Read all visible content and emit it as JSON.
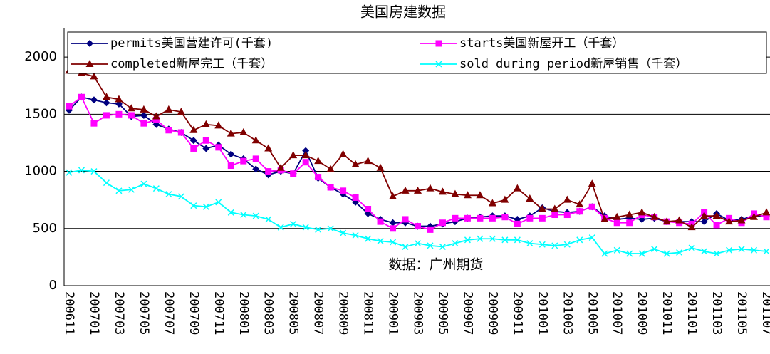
{
  "chart_data": {
    "type": "line",
    "title": "美国房建数据",
    "annotation": "数据：广州期货",
    "categories": [
      "200611",
      null,
      "200701",
      null,
      "200703",
      null,
      "200705",
      null,
      "200707",
      null,
      "200709",
      null,
      "200711",
      null,
      "200801",
      null,
      "200803",
      null,
      "200805",
      null,
      "200807",
      null,
      "200809",
      null,
      "200811",
      null,
      "200901",
      null,
      "200903",
      null,
      "200905",
      null,
      "200907",
      null,
      "200909",
      null,
      "200911",
      null,
      "201001",
      null,
      "201003",
      null,
      "201005",
      null,
      "201007",
      null,
      "201009",
      null,
      "201011",
      null,
      "201101",
      null,
      "201103",
      null,
      "201105",
      null,
      "201107"
    ],
    "series": [
      {
        "name": "permits美国营建许可(千套)",
        "color": "#000080",
        "marker": "diamond",
        "values": [
          1535,
          1650,
          1625,
          1600,
          1590,
          1480,
          1490,
          1410,
          1370,
          1340,
          1270,
          1200,
          1230,
          1150,
          1110,
          1020,
          970,
          1000,
          980,
          1180,
          940,
          860,
          800,
          730,
          630,
          580,
          550,
          550,
          520,
          520,
          540,
          560,
          590,
          600,
          610,
          610,
          580,
          610,
          680,
          650,
          640,
          650,
          690,
          610,
          580,
          590,
          580,
          590,
          560,
          560,
          560,
          560,
          630,
          570,
          580,
          610,
          610
        ]
      },
      {
        "name": "starts美国新屋开工（千套）",
        "color": "#ff00ff",
        "marker": "square",
        "values": [
          1570,
          1650,
          1420,
          1490,
          1500,
          1490,
          1420,
          1450,
          1360,
          1340,
          1200,
          1270,
          1210,
          1050,
          1090,
          1110,
          1000,
          1010,
          980,
          1080,
          950,
          860,
          830,
          770,
          670,
          560,
          500,
          580,
          520,
          490,
          550,
          590,
          590,
          590,
          590,
          600,
          540,
          590,
          590,
          620,
          620,
          650,
          690,
          590,
          550,
          550,
          620,
          600,
          560,
          550,
          540,
          640,
          530,
          590,
          550,
          630,
          600
        ]
      },
      {
        "name": "completed新屋完工（千套）",
        "color": "#800000",
        "marker": "triangle",
        "values": [
          1880,
          1860,
          1830,
          1650,
          1630,
          1550,
          1540,
          1480,
          1540,
          1520,
          1360,
          1410,
          1400,
          1330,
          1340,
          1270,
          1200,
          1030,
          1140,
          1140,
          1090,
          1020,
          1150,
          1060,
          1090,
          1030,
          780,
          830,
          830,
          850,
          820,
          800,
          790,
          790,
          720,
          750,
          850,
          760,
          670,
          670,
          750,
          710,
          890,
          580,
          600,
          620,
          640,
          600,
          560,
          570,
          510,
          610,
          610,
          560,
          570,
          600,
          640
        ]
      },
      {
        "name": "sold during period新屋销售（千套）",
        "color": "#00ffff",
        "marker": "x",
        "values": [
          990,
          1010,
          1000,
          900,
          830,
          840,
          890,
          850,
          800,
          780,
          700,
          690,
          730,
          640,
          620,
          610,
          580,
          510,
          540,
          510,
          490,
          500,
          460,
          440,
          410,
          390,
          380,
          340,
          370,
          350,
          340,
          370,
          400,
          410,
          410,
          400,
          400,
          370,
          360,
          350,
          360,
          400,
          420,
          280,
          310,
          280,
          280,
          320,
          280,
          290,
          330,
          300,
          280,
          310,
          320,
          310,
          300
        ]
      }
    ],
    "ylim": [
      0,
      2250
    ],
    "yticks": [
      0,
      500,
      1000,
      1500,
      2000
    ],
    "grid": true,
    "legend": "top"
  }
}
